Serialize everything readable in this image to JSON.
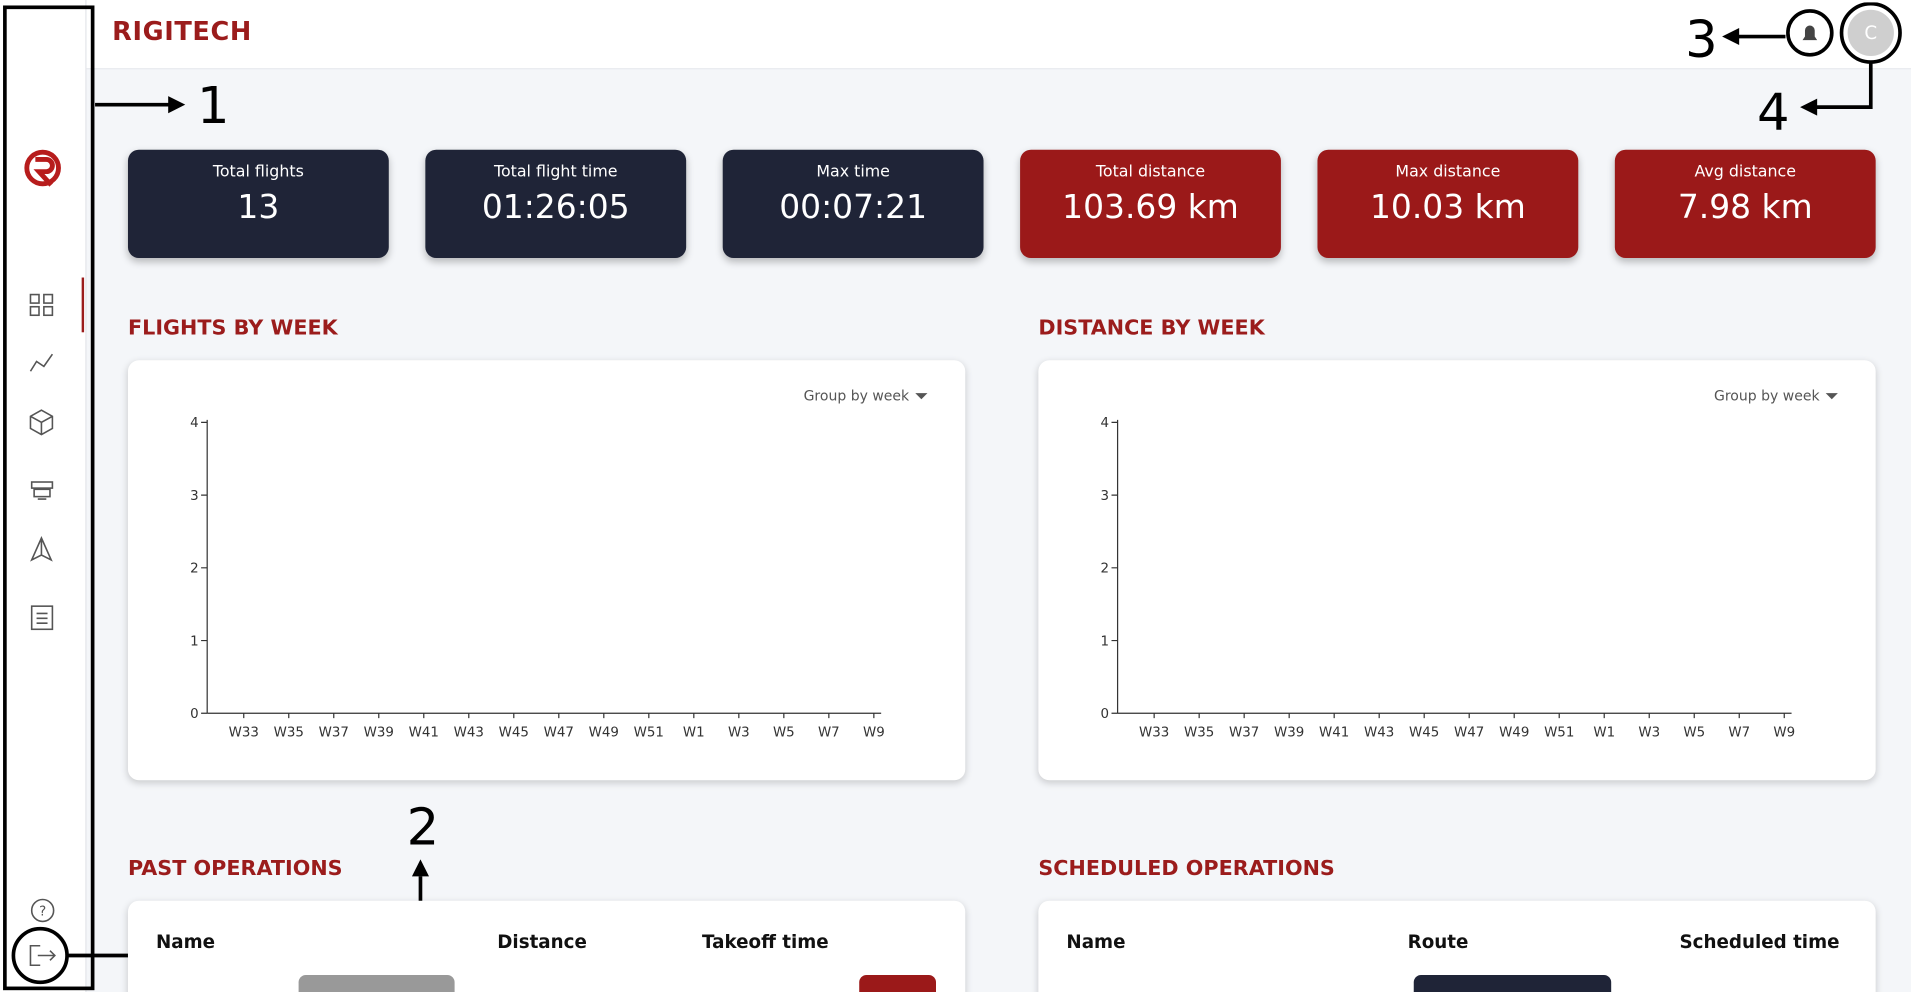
{
  "header": {
    "title": "RIGITECH",
    "avatar": "C"
  },
  "annotations": [
    "1",
    "2",
    "3",
    "4"
  ],
  "stats": [
    {
      "label": "Total flights",
      "value": "13"
    },
    {
      "label": "Total flight time",
      "value": "01:26:05"
    },
    {
      "label": "Max time",
      "value": "00:07:21"
    },
    {
      "label": "Total distance",
      "value": "103.69 km"
    },
    {
      "label": "Max distance",
      "value": "10.03 km"
    },
    {
      "label": "Avg distance",
      "value": "7.98 km"
    }
  ],
  "charts": [
    {
      "title": "FLIGHTS BY WEEK",
      "group_by": "Group by week",
      "categories": [
        "W33",
        "W35",
        "W37",
        "W39",
        "W41",
        "W43",
        "W45",
        "W47",
        "W49",
        "W51",
        "W1",
        "W3",
        "W5",
        "W7",
        "W9"
      ],
      "ylim": [
        0,
        4
      ],
      "yticks": [
        0,
        1,
        2,
        3,
        4
      ]
    },
    {
      "title": "DISTANCE BY WEEK",
      "group_by": "Group by week",
      "categories": [
        "W33",
        "W35",
        "W37",
        "W39",
        "W41",
        "W43",
        "W45",
        "W47",
        "W49",
        "W51",
        "W1",
        "W3",
        "W5",
        "W7",
        "W9"
      ],
      "ylim": [
        0,
        4
      ],
      "yticks": [
        0,
        1,
        2,
        3,
        4
      ]
    }
  ],
  "tables": [
    {
      "title": "PAST OPERATIONS",
      "columns": [
        "Name",
        "Distance",
        "Takeoff time"
      ]
    },
    {
      "title": "SCHEDULED OPERATIONS",
      "columns": [
        "Name",
        "Route",
        "Scheduled time"
      ]
    }
  ]
}
